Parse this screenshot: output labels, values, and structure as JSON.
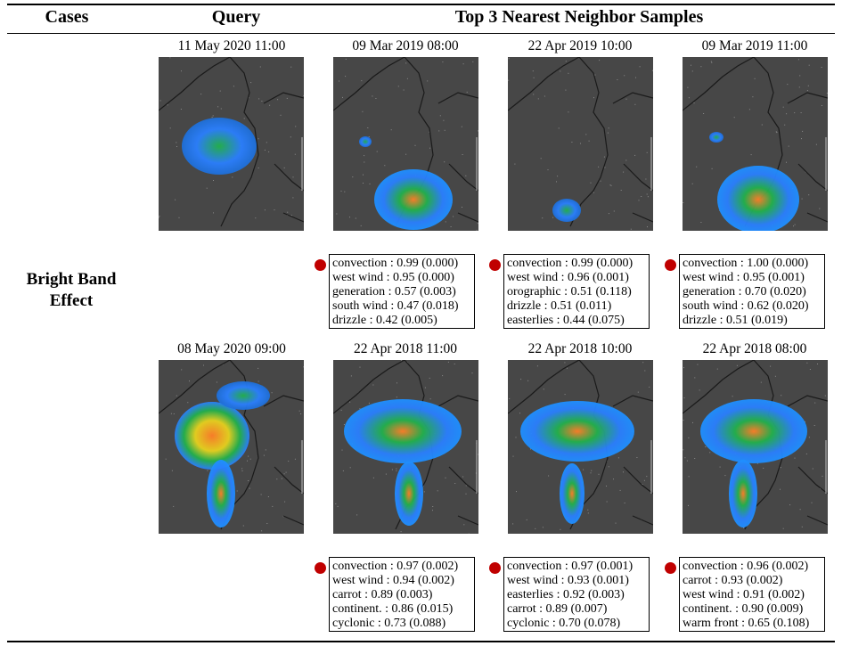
{
  "header": {
    "cases": "Cases",
    "query": "Query",
    "neighbors": "Top 3 Nearest Neighbor Samples"
  },
  "case": {
    "label_line1": "Bright Band",
    "label_line2": "Effect"
  },
  "rows": [
    {
      "query_date": "11 May 2020 11:00",
      "neighbors": [
        {
          "date": "09 Mar 2019 08:00",
          "labels": [
            "convection : 0.99 (0.000)",
            "west wind : 0.95 (0.000)",
            "generation : 0.57 (0.003)",
            "south wind : 0.47 (0.018)",
            "drizzle : 0.42 (0.005)"
          ]
        },
        {
          "date": "22 Apr 2019 10:00",
          "labels": [
            "convection : 0.99 (0.000)",
            "west wind : 0.96 (0.001)",
            "orographic : 0.51 (0.118)",
            "drizzle : 0.51 (0.011)",
            "easterlies : 0.44 (0.075)"
          ]
        },
        {
          "date": "09 Mar 2019 11:00",
          "labels": [
            "convection : 1.00 (0.000)",
            "west wind : 0.95 (0.001)",
            "generation : 0.70 (0.020)",
            "south wind : 0.62 (0.020)",
            "drizzle : 0.51 (0.019)"
          ]
        }
      ]
    },
    {
      "query_date": "08 May 2020 09:00",
      "neighbors": [
        {
          "date": "22 Apr 2018 11:00",
          "labels": [
            "convection : 0.97 (0.002)",
            "west wind : 0.94 (0.002)",
            "carrot : 0.89 (0.003)",
            "continent. : 0.86 (0.015)",
            "cyclonic : 0.73 (0.088)"
          ]
        },
        {
          "date": "22 Apr 2018 10:00",
          "labels": [
            "convection : 0.97 (0.001)",
            "west wind : 0.93 (0.001)",
            "easterlies : 0.92 (0.003)",
            "carrot : 0.89 (0.007)",
            "cyclonic : 0.70 (0.078)"
          ]
        },
        {
          "date": "22 Apr 2018 08:00",
          "labels": [
            "convection : 0.96 (0.002)",
            "carrot : 0.93 (0.002)",
            "west wind : 0.91 (0.002)",
            "continent. : 0.90 (0.009)",
            "warm front : 0.65 (0.108)"
          ]
        }
      ]
    }
  ],
  "colors": {
    "map_bg": "#474747",
    "coast": "#1a1a1a",
    "marker": "#c00000",
    "echo_low": "#2a7fff",
    "echo_mid": "#22b14c",
    "echo_high": "#ff7f27"
  }
}
